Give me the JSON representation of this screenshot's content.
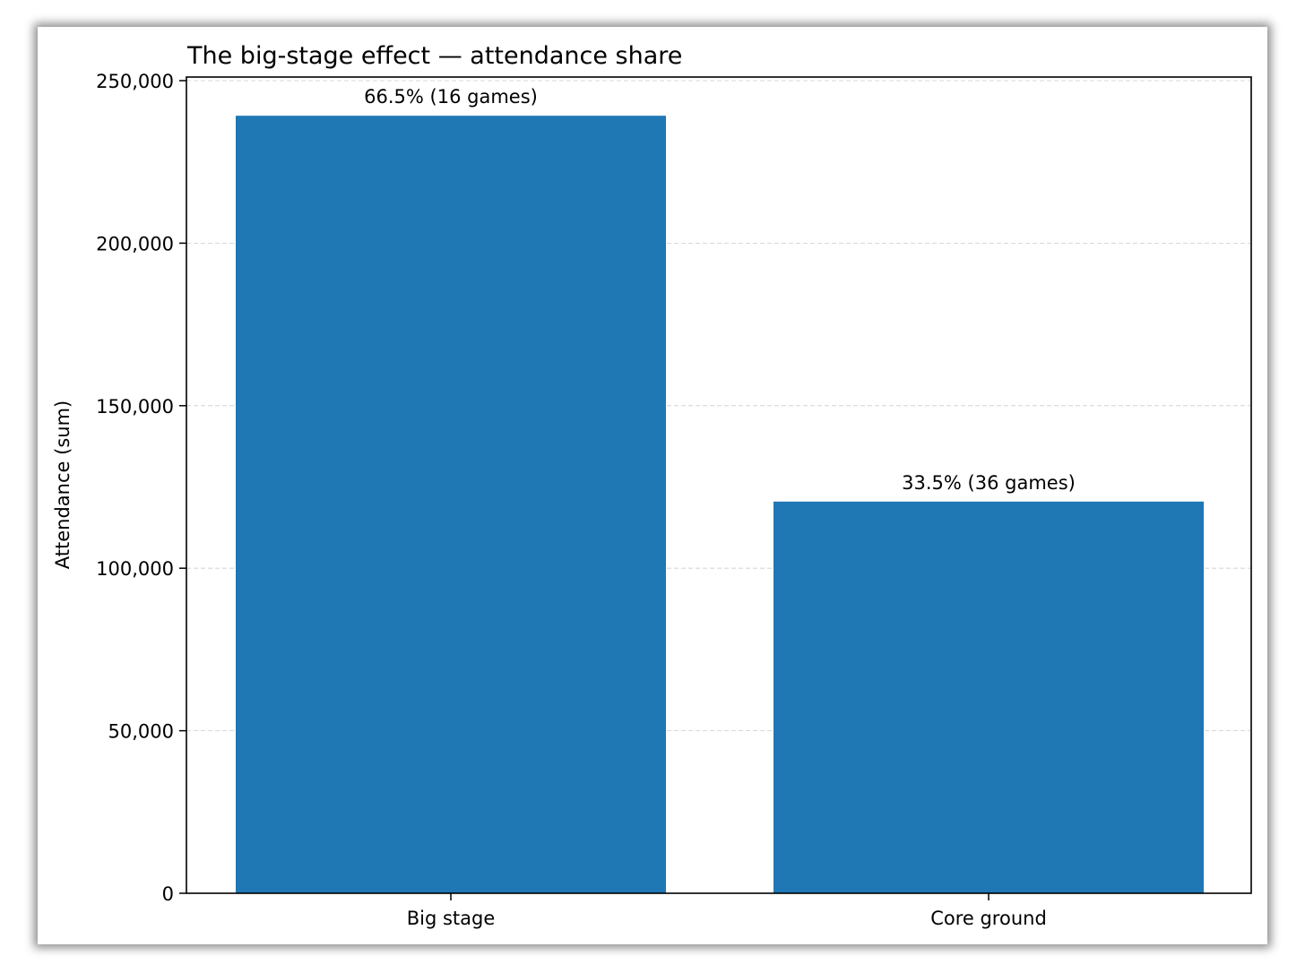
{
  "chart_data": {
    "type": "bar",
    "title": "The big-stage effect — attendance share",
    "xlabel": "",
    "ylabel": "Attendance (sum)",
    "categories": [
      "Big stage",
      "Core ground"
    ],
    "values": [
      239200,
      120500
    ],
    "bar_labels": [
      "66.5% (16 games)",
      "33.5% (36 games)"
    ],
    "ylim": [
      0,
      250000
    ],
    "yticks": [
      0,
      50000,
      100000,
      150000,
      200000,
      250000
    ],
    "ytick_labels": [
      "0",
      "50,000",
      "100,000",
      "150,000",
      "200,000",
      "250,000"
    ],
    "grid": "y dashed",
    "bar_color": "#1f77b4"
  }
}
